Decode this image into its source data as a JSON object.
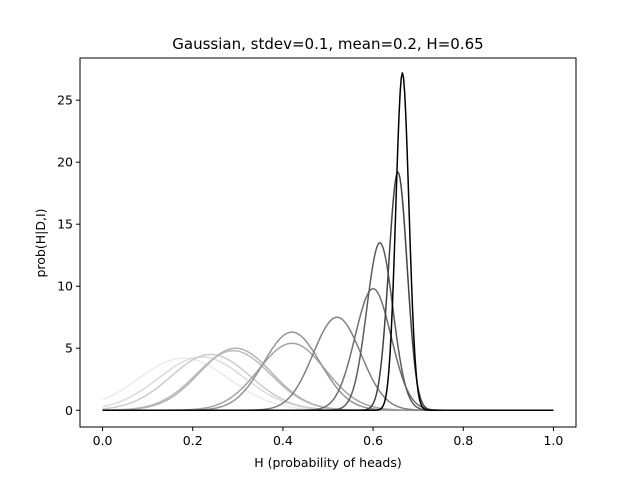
{
  "chart_data": {
    "type": "line",
    "title": "Gaussian, stdev=0.1, mean=0.2, H=0.65",
    "xlabel": "H (probability of heads)",
    "ylabel": "prob(H|D,I)",
    "xlim": [
      -0.05,
      1.05
    ],
    "ylim": [
      -1.35,
      28.4
    ],
    "xticks": [
      0.0,
      0.2,
      0.4,
      0.6,
      0.8,
      1.0
    ],
    "xtick_labels": [
      "0.0",
      "0.2",
      "0.4",
      "0.6",
      "0.8",
      "1.0"
    ],
    "yticks": [
      0,
      5,
      10,
      15,
      20,
      25
    ],
    "ytick_labels": [
      "0",
      "5",
      "10",
      "15",
      "20",
      "25"
    ],
    "grid": false,
    "legend": "none",
    "x_range": [
      0.0,
      1.0
    ],
    "series": [
      {
        "shade": 0.92,
        "peak_x": 0.18,
        "peak_y": 4.2,
        "width": 0.1
      },
      {
        "shade": 0.86,
        "peak_x": 0.22,
        "peak_y": 4.3,
        "width": 0.095
      },
      {
        "shade": 0.8,
        "peak_x": 0.24,
        "peak_y": 4.5,
        "width": 0.088
      },
      {
        "shade": 0.74,
        "peak_x": 0.29,
        "peak_y": 4.8,
        "width": 0.082
      },
      {
        "shade": 0.7,
        "peak_x": 0.295,
        "peak_y": 5.0,
        "width": 0.08
      },
      {
        "shade": 0.64,
        "peak_x": 0.42,
        "peak_y": 5.4,
        "width": 0.074
      },
      {
        "shade": 0.58,
        "peak_x": 0.42,
        "peak_y": 6.3,
        "width": 0.063
      },
      {
        "shade": 0.5,
        "peak_x": 0.52,
        "peak_y": 7.5,
        "width": 0.053
      },
      {
        "shade": 0.44,
        "peak_x": 0.6,
        "peak_y": 9.8,
        "width": 0.04
      },
      {
        "shade": 0.36,
        "peak_x": 0.615,
        "peak_y": 13.5,
        "width": 0.029
      },
      {
        "shade": 0.26,
        "peak_x": 0.655,
        "peak_y": 19.2,
        "width": 0.0205
      },
      {
        "shade": 0.0,
        "peak_x": 0.665,
        "peak_y": 27.2,
        "width": 0.0145
      }
    ]
  }
}
